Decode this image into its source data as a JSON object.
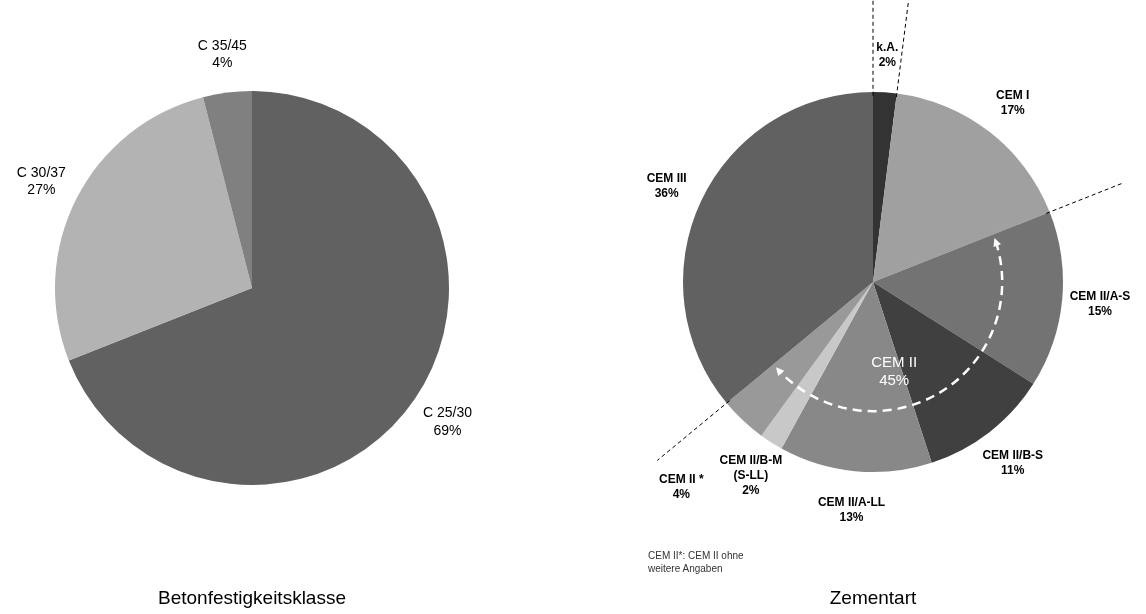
{
  "chart_data": [
    {
      "type": "pie",
      "title": "Betonfestigkeitsklasse",
      "categories": [
        "C 25/30",
        "C 30/37",
        "C 35/45"
      ],
      "values": [
        69,
        27,
        4
      ],
      "colors": [
        "#616161",
        "#b3b3b3",
        "#808080"
      ],
      "value_labels": [
        "69%",
        "27%",
        "4%"
      ]
    },
    {
      "type": "pie",
      "title": "Zementart",
      "categories": [
        "k.A.",
        "CEM I",
        "CEM II/A-S",
        "CEM II/B-S",
        "CEM II/A-LL",
        "CEM II/B-M\n(S-LL)",
        "CEM II *",
        "CEM III"
      ],
      "values": [
        2,
        17,
        15,
        11,
        13,
        2,
        4,
        36
      ],
      "colors": [
        "#333333",
        "#a0a0a0",
        "#737373",
        "#404040",
        "#888888",
        "#c8c8c8",
        "#999999",
        "#616161"
      ],
      "value_labels": [
        "2%",
        "17%",
        "15%",
        "11%",
        "13%",
        "2%",
        "4%",
        "36%"
      ],
      "annotations": [
        "CEM II\n45%",
        "CEM II*: CEM II ohne\nweitere Angaben"
      ]
    }
  ]
}
